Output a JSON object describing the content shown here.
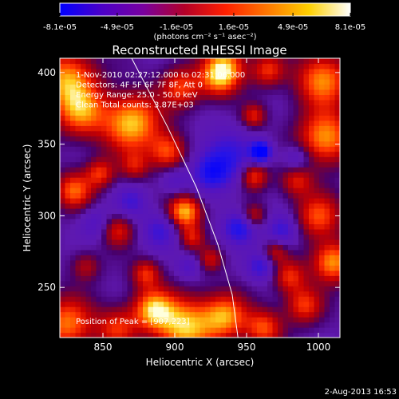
{
  "chart_data": {
    "type": "heatmap",
    "title": "Reconstructed RHESSI Image",
    "xlabel": "Heliocentric X (arcsec)",
    "ylabel": "Heliocentric Y (arcsec)",
    "xlim": [
      820,
      1015
    ],
    "ylim": [
      215,
      410
    ],
    "xticks": [
      850,
      900,
      950,
      1000
    ],
    "yticks": [
      250,
      300,
      350,
      400
    ],
    "colorbar": {
      "range": [
        -8.1e-05,
        8.1e-05
      ],
      "tick_labels": [
        "-8.1e-05",
        "-4.9e-05",
        "-1.6e-05",
        "1.6e-05",
        "4.9e-05",
        "8.1e-05"
      ],
      "tick_values": [
        -8.1e-05,
        -4.9e-05,
        -1.6e-05,
        1.6e-05,
        4.9e-05,
        8.1e-05
      ],
      "unit_label": "(photons cm⁻² s⁻¹ asec⁻²)",
      "colors": [
        "#0000ff",
        "#4b00c8",
        "#7800a0",
        "#b40028",
        "#ff2000",
        "#ff7800",
        "#ffd000",
        "#ffffff"
      ]
    },
    "annotations": [
      "1-Nov-2010 02:27:12.000 to 02:31:06.000",
      "Detectors: 4F 5F 6F 7F 8F, Att 0",
      "Energy Range: 25.0 - 50.0 keV",
      "Clean      Total counts: 3.87E+03"
    ],
    "peak_label": "Position of Peak = [907,223]",
    "limb": [
      [
        870,
        410
      ],
      [
        895,
        362
      ],
      [
        915,
        320
      ],
      [
        930,
        280
      ],
      [
        940,
        245
      ],
      [
        944,
        215
      ]
    ],
    "blobs": [
      {
        "x": 825,
        "y": 395,
        "r": 14,
        "v": 0.9
      },
      {
        "x": 835,
        "y": 372,
        "r": 12,
        "v": 0.75
      },
      {
        "x": 870,
        "y": 365,
        "r": 14,
        "v": 1.0
      },
      {
        "x": 895,
        "y": 345,
        "r": 9,
        "v": 0.7
      },
      {
        "x": 872,
        "y": 335,
        "r": 7,
        "v": 0.45
      },
      {
        "x": 905,
        "y": 390,
        "r": 10,
        "v": 0.65
      },
      {
        "x": 935,
        "y": 405,
        "r": 10,
        "v": 0.85
      },
      {
        "x": 930,
        "y": 395,
        "r": 9,
        "v": 0.6
      },
      {
        "x": 955,
        "y": 370,
        "r": 6,
        "v": 0.55
      },
      {
        "x": 965,
        "y": 402,
        "r": 8,
        "v": 0.6
      },
      {
        "x": 1003,
        "y": 395,
        "r": 13,
        "v": 0.85
      },
      {
        "x": 1005,
        "y": 355,
        "r": 13,
        "v": 0.9
      },
      {
        "x": 985,
        "y": 325,
        "r": 8,
        "v": 0.55
      },
      {
        "x": 1000,
        "y": 300,
        "r": 11,
        "v": 0.7
      },
      {
        "x": 1010,
        "y": 268,
        "r": 10,
        "v": 0.9
      },
      {
        "x": 980,
        "y": 258,
        "r": 8,
        "v": 0.6
      },
      {
        "x": 990,
        "y": 238,
        "r": 9,
        "v": 0.65
      },
      {
        "x": 830,
        "y": 318,
        "r": 9,
        "v": 0.75
      },
      {
        "x": 848,
        "y": 330,
        "r": 7,
        "v": 0.6
      },
      {
        "x": 860,
        "y": 290,
        "r": 8,
        "v": 0.55
      },
      {
        "x": 838,
        "y": 265,
        "r": 7,
        "v": 0.4
      },
      {
        "x": 907,
        "y": 303,
        "r": 8,
        "v": 1.0
      },
      {
        "x": 912,
        "y": 285,
        "r": 6,
        "v": 0.5
      },
      {
        "x": 955,
        "y": 328,
        "r": 7,
        "v": 0.7
      },
      {
        "x": 955,
        "y": 300,
        "r": 6,
        "v": 0.5
      },
      {
        "x": 880,
        "y": 260,
        "r": 7,
        "v": 0.6
      },
      {
        "x": 925,
        "y": 270,
        "r": 6,
        "v": 0.45
      },
      {
        "x": 970,
        "y": 275,
        "r": 6,
        "v": 0.45
      },
      {
        "x": 825,
        "y": 225,
        "r": 13,
        "v": 0.8
      },
      {
        "x": 860,
        "y": 222,
        "r": 10,
        "v": 0.6
      },
      {
        "x": 885,
        "y": 235,
        "r": 10,
        "v": 0.9
      },
      {
        "x": 907,
        "y": 223,
        "r": 14,
        "v": 1.0
      },
      {
        "x": 935,
        "y": 230,
        "r": 11,
        "v": 0.85
      },
      {
        "x": 962,
        "y": 222,
        "r": 9,
        "v": 0.7
      },
      {
        "x": 935,
        "y": 340,
        "r": 14,
        "v": -0.55
      },
      {
        "x": 960,
        "y": 345,
        "r": 5,
        "v": -1.0
      },
      {
        "x": 945,
        "y": 292,
        "r": 8,
        "v": -0.65
      },
      {
        "x": 925,
        "y": 330,
        "r": 8,
        "v": -0.45
      },
      {
        "x": 975,
        "y": 290,
        "r": 8,
        "v": -0.5
      },
      {
        "x": 960,
        "y": 265,
        "r": 7,
        "v": -0.5
      },
      {
        "x": 890,
        "y": 290,
        "r": 9,
        "v": -0.45
      },
      {
        "x": 870,
        "y": 310,
        "r": 8,
        "v": -0.4
      },
      {
        "x": 910,
        "y": 265,
        "r": 6,
        "v": -0.35
      },
      {
        "x": 985,
        "y": 340,
        "r": 7,
        "v": -0.4
      },
      {
        "x": 900,
        "y": 325,
        "r": 7,
        "v": -0.3
      },
      {
        "x": 845,
        "y": 295,
        "r": 8,
        "v": -0.35
      }
    ]
  },
  "footer": {
    "timestamp": "2-Aug-2013 16:53"
  }
}
